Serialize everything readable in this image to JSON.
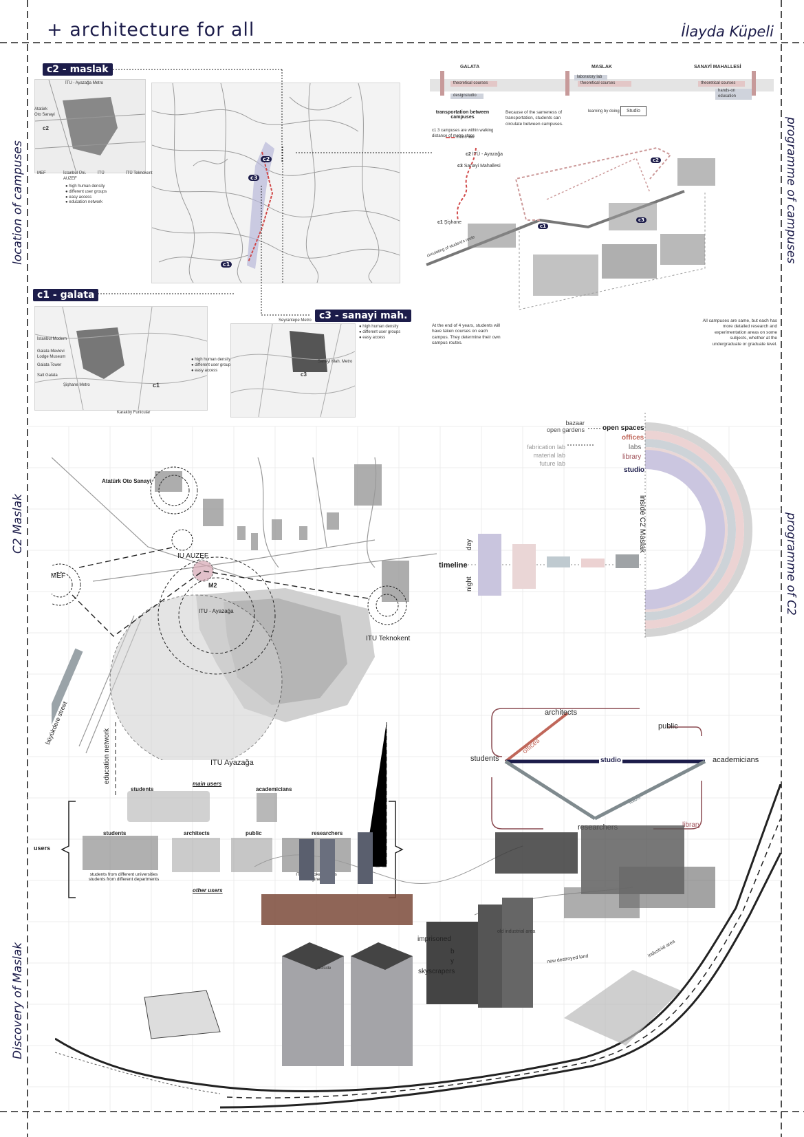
{
  "header": {
    "title": "+ architecture for all",
    "author": "İlayda Küpeli"
  },
  "side_labels": {
    "location": "location of campuses",
    "c2_maslak": "C2 Maslak",
    "discovery": "Discovery of Maslak",
    "programme_campuses": "programme of campuses",
    "programme_c2": "programme of C2"
  },
  "campus_maps": {
    "c2": {
      "tag": "c2 - maslak",
      "labels": [
        "İTU - Ayazağa Metro",
        "Atatürk Oto Sanayi",
        "MEF",
        "İstanbul Üni. AUZEF",
        "İTÜ",
        "İTÜ Teknokent",
        "c2"
      ],
      "legend": [
        "high human density",
        "different user groups",
        "easy access",
        "education network"
      ]
    },
    "c1": {
      "tag": "c1 - galata",
      "labels": [
        "İstanbul Modern",
        "Galata Mevlevi Lodge Museum",
        "Galata Tower",
        "Salt Galata",
        "Şişhane Metro",
        "Karaköy Funicular",
        "c1"
      ],
      "legend": [
        "high human density",
        "different user groups",
        "easy access"
      ]
    },
    "c3": {
      "tag": "c3 - sanayi mah.",
      "labels": [
        "Seyrantepe Metro",
        "Sanayi Mah. Metro",
        "c3"
      ],
      "legend": [
        "high human density",
        "different user groups",
        "easy access"
      ]
    },
    "city_markers": [
      "c2",
      "c3",
      "c1"
    ]
  },
  "programme_campuses": {
    "stations": [
      "GALATA",
      "MASLAK",
      "SANAYİ MAHALLESİ"
    ],
    "bars": [
      "theoretical courses",
      "designstudio",
      "laboratory lab",
      "theoretical courses",
      "theoretical courses",
      "hands-on education"
    ],
    "transport_title": "transportation between campuses",
    "transport_note": "Because of the sameness of transportation, students can circulate between campuses.",
    "metro_note": "c1 3 campuses are within walking distance of metro stops",
    "metro_line": "metro line",
    "route_stops": [
      "c2",
      "c3",
      "c1"
    ],
    "route_names": [
      "İTÜ - Ayazağa",
      "Sanayi Mahallesi",
      "Şişhane"
    ],
    "studio_box": "Studio",
    "learning": "learning by doing",
    "route_caption": "At the end of 4 years, students will have taken courses on each campus. They determine their own campus routes.",
    "campus_caption": "All campuses are same, but each has more detailed research and experimentation areas on some subjects, whether at the undergraduate or graduate level.",
    "diagonal_label": "circulating of student's route",
    "axo_markers": [
      "c1",
      "c2",
      "c3"
    ]
  },
  "c2_map": {
    "places": [
      "Atatürk Oto Sanayi",
      "IU AUZEF",
      "MEF",
      "M2",
      "ITU - Ayazağa",
      "ITU Teknokent",
      "ITU Ayazağa",
      "büyükdere street",
      "education network"
    ]
  },
  "users": {
    "bracket_label": "users",
    "main_users": "main users",
    "other_users": "other users",
    "groups": [
      "students",
      "academicians",
      "students",
      "architects",
      "public",
      "researchers"
    ],
    "note_students": "students from different universities\nstudents from different departments",
    "note_researchers": "ITU Teknokent users\nEngineers"
  },
  "programme_c2": {
    "left_items": [
      "bazaar",
      "open gardens",
      "fabrication lab",
      "material lab",
      "future lab"
    ],
    "ring_labels": [
      {
        "label": "open spaces",
        "color": "#222222"
      },
      {
        "label": "offices",
        "color": "#c0675a"
      },
      {
        "label": "labs",
        "color": "#888888"
      },
      {
        "label": "library",
        "color": "#a0525a"
      },
      {
        "label": "studio",
        "color": "#1c1c4a"
      }
    ],
    "vertical_label": "inside C2 Maslak",
    "timeline": "timeline",
    "day": "day",
    "night": "night"
  },
  "timeline_chart": {
    "type": "bar",
    "categories": [
      "studio",
      "library",
      "labs",
      "offices",
      "open spaces"
    ],
    "series": [
      {
        "values": [
          4.5,
          3.0,
          1.2,
          0.9,
          1.5
        ]
      },
      {
        "values": [
          4.5,
          3.5,
          0.4,
          0.4,
          0.5
        ]
      }
    ],
    "colors": [
      "#c9c5de",
      "#ead6d6",
      "#bfcad0",
      "#ecd2d2",
      "#9fa3a6"
    ]
  },
  "relations": {
    "nodes": [
      "architects",
      "public",
      "students",
      "academicians",
      "researchers"
    ],
    "edges": [
      "offices",
      "studio",
      "labs",
      "library"
    ]
  },
  "discovery": {
    "labels": [
      "old industrial area",
      "new destroyed land",
      "industrial area",
      "imprisoned",
      "b",
      "y",
      "skyscrapers",
      "outside"
    ]
  }
}
